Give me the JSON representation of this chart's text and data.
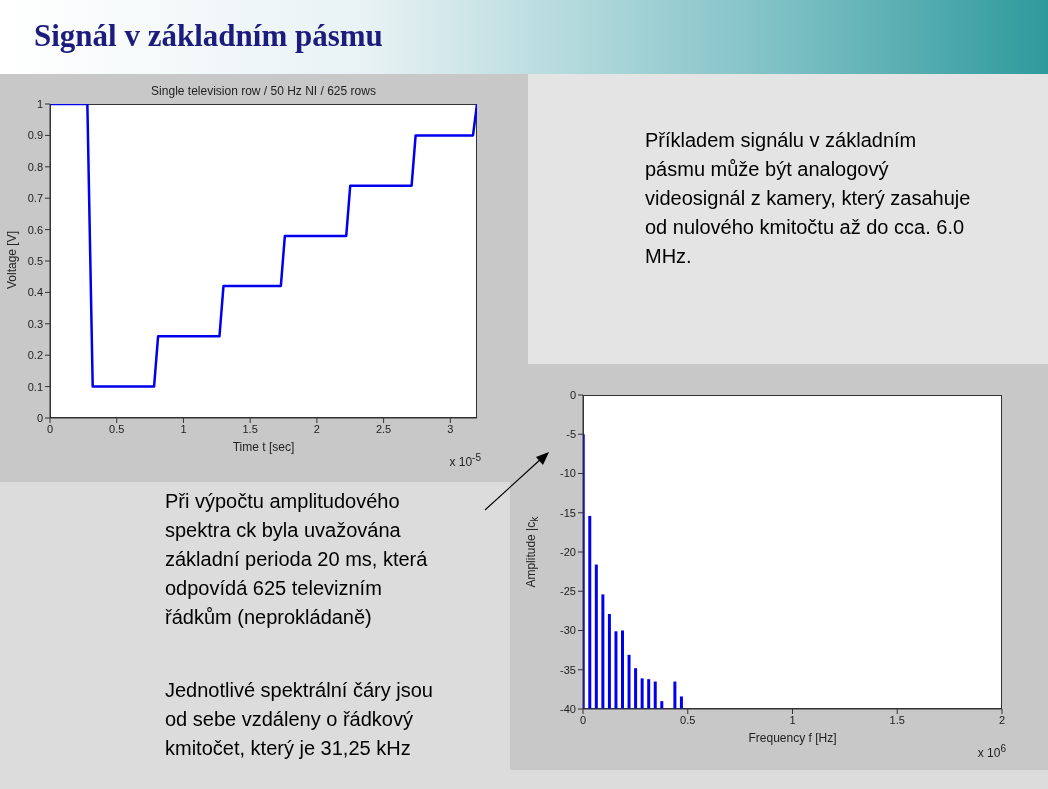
{
  "chart_data": [
    {
      "type": "line",
      "title": "Single television row / 50 Hz NI / 625 rows",
      "xlabel": "Time t [sec]",
      "ylabel": "Voltage [V]",
      "annotations": [
        "x 10$^{-5}$"
      ],
      "color": "#0000ee",
      "x": [
        0,
        0.28,
        0.32,
        0.78,
        0.81,
        1.27,
        1.3,
        1.73,
        1.76,
        2.22,
        2.25,
        2.71,
        2.74,
        3.17,
        3.2
      ],
      "values": [
        1,
        1,
        0.1,
        0.1,
        0.26,
        0.26,
        0.42,
        0.42,
        0.58,
        0.58,
        0.74,
        0.74,
        0.9,
        0.9,
        1
      ],
      "xlim": [
        0,
        3.2
      ],
      "xticks": [
        0,
        0.5,
        1,
        1.5,
        2,
        2.5,
        3
      ],
      "ylim": [
        0,
        1
      ],
      "yticks": [
        0,
        0.1,
        0.2,
        0.3,
        0.4,
        0.5,
        0.6,
        0.7,
        0.8,
        0.9,
        1
      ]
    },
    {
      "type": "bar",
      "xlabel": "Frequency f [Hz]",
      "ylabel": "Amplitude |c$_{k}$",
      "annotations": [
        "x 10$^{6}$"
      ],
      "color": "#0000ee",
      "x": [
        0,
        0.03125,
        0.0625,
        0.09375,
        0.125,
        0.15625,
        0.1875,
        0.21875,
        0.25,
        0.28125,
        0.3125,
        0.34375,
        0.375,
        0.4375,
        0.46875
      ],
      "base": [
        -40,
        -40,
        -40,
        -40,
        -40,
        -40,
        -40,
        -40,
        -40,
        -40,
        -40,
        -40,
        -40,
        -40,
        -40
      ],
      "values": [
        35,
        24.6,
        18.4,
        14.6,
        12.1,
        9.9,
        10,
        6.9,
        5.2,
        3.9,
        3.8,
        3.5,
        1,
        3.5,
        1.6
      ],
      "xlim": [
        0,
        2
      ],
      "xticks": [
        0,
        0.5,
        1,
        1.5,
        2
      ],
      "ylim": [
        -40,
        0
      ],
      "yticks": [
        -40,
        -35,
        -30,
        -25,
        -20,
        -15,
        -10,
        -5,
        0
      ]
    },
    {
      "type": "other",
      "title": "Signál v základním pásmu",
      "annotations": [
        "Příkladem signálu v základním\npásmu může být analogový\nvideosignál z kamery, který zasahuje\nod nulového kmitočtu až do cca. 6.0\nMHz.",
        "Při výpočtu amplitudového\nspektra ck byla uvažována\nzákladní perioda 20 ms, která\nodpovídá 625 televizním\nřádkům (neprokládaně)",
        "Jednotlivé spektrální čáry jsou\nod sebe vzdáleny o řádkový\nkmitočet, který je 31,25 kHz"
      ]
    }
  ]
}
